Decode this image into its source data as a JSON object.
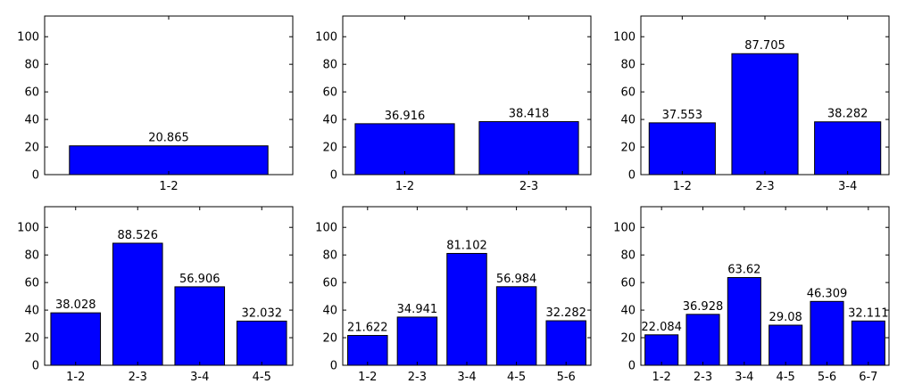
{
  "colors": {
    "bar": "#0000ff",
    "edge": "#000000",
    "background": "#ffffff"
  },
  "chart_data": [
    {
      "type": "bar",
      "title": "",
      "xlabel": "",
      "ylabel": "",
      "ylim": [
        0,
        115
      ],
      "yticks": [
        0,
        20,
        40,
        60,
        80,
        100
      ],
      "grid": false,
      "categories": [
        "1-2"
      ],
      "values": [
        20.865
      ]
    },
    {
      "type": "bar",
      "title": "",
      "xlabel": "",
      "ylabel": "",
      "ylim": [
        0,
        115
      ],
      "yticks": [
        0,
        20,
        40,
        60,
        80,
        100
      ],
      "grid": false,
      "categories": [
        "1-2",
        "2-3"
      ],
      "values": [
        36.916,
        38.418
      ]
    },
    {
      "type": "bar",
      "title": "",
      "xlabel": "",
      "ylabel": "",
      "ylim": [
        0,
        115
      ],
      "yticks": [
        0,
        20,
        40,
        60,
        80,
        100
      ],
      "grid": false,
      "categories": [
        "1-2",
        "2-3",
        "3-4"
      ],
      "values": [
        37.553,
        87.705,
        38.282
      ]
    },
    {
      "type": "bar",
      "title": "",
      "xlabel": "",
      "ylabel": "",
      "ylim": [
        0,
        115
      ],
      "yticks": [
        0,
        20,
        40,
        60,
        80,
        100
      ],
      "grid": false,
      "categories": [
        "1-2",
        "2-3",
        "3-4",
        "4-5"
      ],
      "values": [
        38.028,
        88.526,
        56.906,
        32.032
      ]
    },
    {
      "type": "bar",
      "title": "",
      "xlabel": "",
      "ylabel": "",
      "ylim": [
        0,
        115
      ],
      "yticks": [
        0,
        20,
        40,
        60,
        80,
        100
      ],
      "grid": false,
      "categories": [
        "1-2",
        "2-3",
        "3-4",
        "4-5",
        "5-6"
      ],
      "values": [
        21.622,
        34.941,
        81.102,
        56.984,
        32.282
      ]
    },
    {
      "type": "bar",
      "title": "",
      "xlabel": "",
      "ylabel": "",
      "ylim": [
        0,
        115
      ],
      "yticks": [
        0,
        20,
        40,
        60,
        80,
        100
      ],
      "grid": false,
      "categories": [
        "1-2",
        "2-3",
        "3-4",
        "4-5",
        "5-6",
        "6-7"
      ],
      "values": [
        22.084,
        36.928,
        63.62,
        29.08,
        46.309,
        32.111
      ]
    }
  ]
}
